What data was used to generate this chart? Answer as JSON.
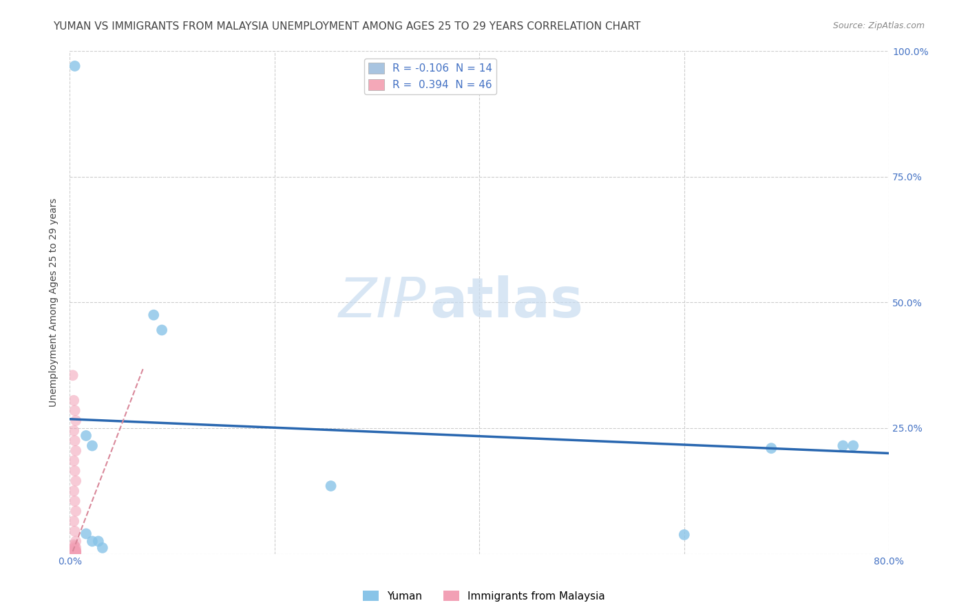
{
  "title": "YUMAN VS IMMIGRANTS FROM MALAYSIA UNEMPLOYMENT AMONG AGES 25 TO 29 YEARS CORRELATION CHART",
  "source": "Source: ZipAtlas.com",
  "ylabel": "Unemployment Among Ages 25 to 29 years",
  "watermark_left": "ZIP",
  "watermark_right": "atlas",
  "xlim": [
    0,
    0.8
  ],
  "ylim": [
    0,
    1.0
  ],
  "xticks": [
    0.0,
    0.2,
    0.4,
    0.6,
    0.8
  ],
  "xticklabels": [
    "0.0%",
    "",
    "",
    "",
    "80.0%"
  ],
  "yticks": [
    0.0,
    0.25,
    0.5,
    0.75,
    1.0
  ],
  "yticklabels_right": [
    "",
    "25.0%",
    "50.0%",
    "75.0%",
    "100.0%"
  ],
  "legend_entries": [
    {
      "label_r": "R = ",
      "r_val": "-0.106",
      "label_n": "  N = ",
      "n_val": "14",
      "color": "#a8c4e0"
    },
    {
      "label_r": "R =  ",
      "r_val": "0.394",
      "label_n": "  N = ",
      "n_val": "46",
      "color": "#f4a8b8"
    }
  ],
  "legend_bottom": [
    "Yuman",
    "Immigrants from Malaysia"
  ],
  "yuman_scatter": [
    [
      0.005,
      0.97
    ],
    [
      0.082,
      0.475
    ],
    [
      0.09,
      0.445
    ],
    [
      0.016,
      0.235
    ],
    [
      0.022,
      0.215
    ],
    [
      0.016,
      0.04
    ],
    [
      0.255,
      0.135
    ],
    [
      0.022,
      0.025
    ],
    [
      0.028,
      0.025
    ],
    [
      0.6,
      0.038
    ],
    [
      0.755,
      0.215
    ],
    [
      0.765,
      0.215
    ],
    [
      0.685,
      0.21
    ],
    [
      0.032,
      0.012
    ]
  ],
  "malaysia_scatter": [
    [
      0.003,
      0.355
    ],
    [
      0.004,
      0.305
    ],
    [
      0.005,
      0.285
    ],
    [
      0.006,
      0.265
    ],
    [
      0.004,
      0.245
    ],
    [
      0.005,
      0.225
    ],
    [
      0.006,
      0.205
    ],
    [
      0.004,
      0.185
    ],
    [
      0.005,
      0.165
    ],
    [
      0.006,
      0.145
    ],
    [
      0.004,
      0.125
    ],
    [
      0.005,
      0.105
    ],
    [
      0.006,
      0.085
    ],
    [
      0.004,
      0.065
    ],
    [
      0.005,
      0.045
    ],
    [
      0.006,
      0.025
    ],
    [
      0.004,
      0.018
    ],
    [
      0.005,
      0.015
    ],
    [
      0.006,
      0.012
    ],
    [
      0.003,
      0.01
    ],
    [
      0.004,
      0.008
    ],
    [
      0.005,
      0.007
    ],
    [
      0.006,
      0.006
    ],
    [
      0.004,
      0.005
    ],
    [
      0.003,
      0.005
    ],
    [
      0.005,
      0.005
    ],
    [
      0.006,
      0.005
    ],
    [
      0.004,
      0.005
    ],
    [
      0.005,
      0.004
    ],
    [
      0.006,
      0.004
    ],
    [
      0.003,
      0.004
    ],
    [
      0.004,
      0.004
    ],
    [
      0.005,
      0.003
    ],
    [
      0.006,
      0.003
    ],
    [
      0.003,
      0.003
    ],
    [
      0.004,
      0.003
    ],
    [
      0.005,
      0.002
    ],
    [
      0.006,
      0.002
    ],
    [
      0.003,
      0.002
    ],
    [
      0.004,
      0.002
    ],
    [
      0.005,
      0.002
    ],
    [
      0.006,
      0.001
    ],
    [
      0.003,
      0.001
    ],
    [
      0.004,
      0.001
    ],
    [
      0.005,
      0.001
    ],
    [
      0.006,
      0.001
    ]
  ],
  "yuman_trendline_x": [
    0.0,
    0.8
  ],
  "yuman_trendline_y": [
    0.268,
    0.2
  ],
  "malaysia_trendline_x": [
    0.003,
    0.072
  ],
  "malaysia_trendline_y": [
    0.005,
    0.37
  ],
  "scatter_color_yuman": "#89C4E8",
  "scatter_color_malaysia": "#F2A0B5",
  "trendline_color_yuman": "#2967B0",
  "trendline_color_malaysia": "#D9889A",
  "grid_color": "#CCCCCC",
  "background_color": "#FFFFFF",
  "title_fontsize": 11,
  "axis_label_fontsize": 10,
  "tick_fontsize": 10,
  "tick_color": "#4472C4",
  "text_color": "#444444",
  "source_color": "#888888"
}
